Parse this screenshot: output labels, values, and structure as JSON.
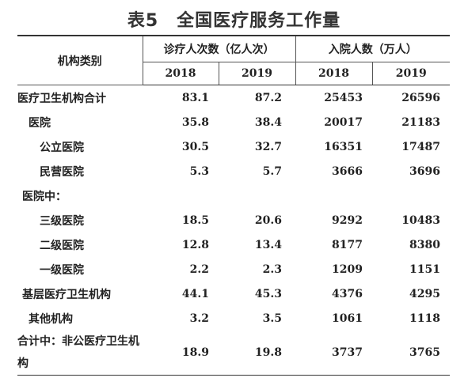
{
  "title": "表5　全国医疗服务工作量",
  "header": {
    "category_label": "机构类别",
    "group1_label": "诊疗人次数（亿人次）",
    "group2_label": "入院人数（万人）",
    "years": [
      "2018",
      "2019",
      "2018",
      "2019"
    ]
  },
  "rows": [
    {
      "label": "医疗卫生机构合计",
      "values": [
        "83.1",
        "87.2",
        "25453",
        "26596"
      ]
    },
    {
      "label": "医院",
      "values": [
        "35.8",
        "38.4",
        "20017",
        "21183"
      ]
    },
    {
      "label": "公立医院",
      "values": [
        "30.5",
        "32.7",
        "16351",
        "17487"
      ]
    },
    {
      "label": "民营医院",
      "values": [
        "5.3",
        "5.7",
        "3666",
        "3696"
      ]
    },
    {
      "label": "医院中：",
      "values": [
        "",
        "",
        "",
        ""
      ]
    },
    {
      "label": "三级医院",
      "values": [
        "18.5",
        "20.6",
        "9292",
        "10483"
      ]
    },
    {
      "label": "二级医院",
      "values": [
        "12.8",
        "13.4",
        "8177",
        "8380"
      ]
    },
    {
      "label": "一级医院",
      "values": [
        "2.2",
        "2.3",
        "1209",
        "1151"
      ]
    },
    {
      "label": "基层医疗卫生机构",
      "values": [
        "44.1",
        "45.3",
        "4376",
        "4295"
      ]
    },
    {
      "label": "其他机构",
      "values": [
        "3.2",
        "3.5",
        "1061",
        "1118"
      ]
    },
    {
      "label": "合计中：非公医疗卫生机构",
      "values": [
        "18.9",
        "19.8",
        "3737",
        "3765"
      ]
    }
  ]
}
